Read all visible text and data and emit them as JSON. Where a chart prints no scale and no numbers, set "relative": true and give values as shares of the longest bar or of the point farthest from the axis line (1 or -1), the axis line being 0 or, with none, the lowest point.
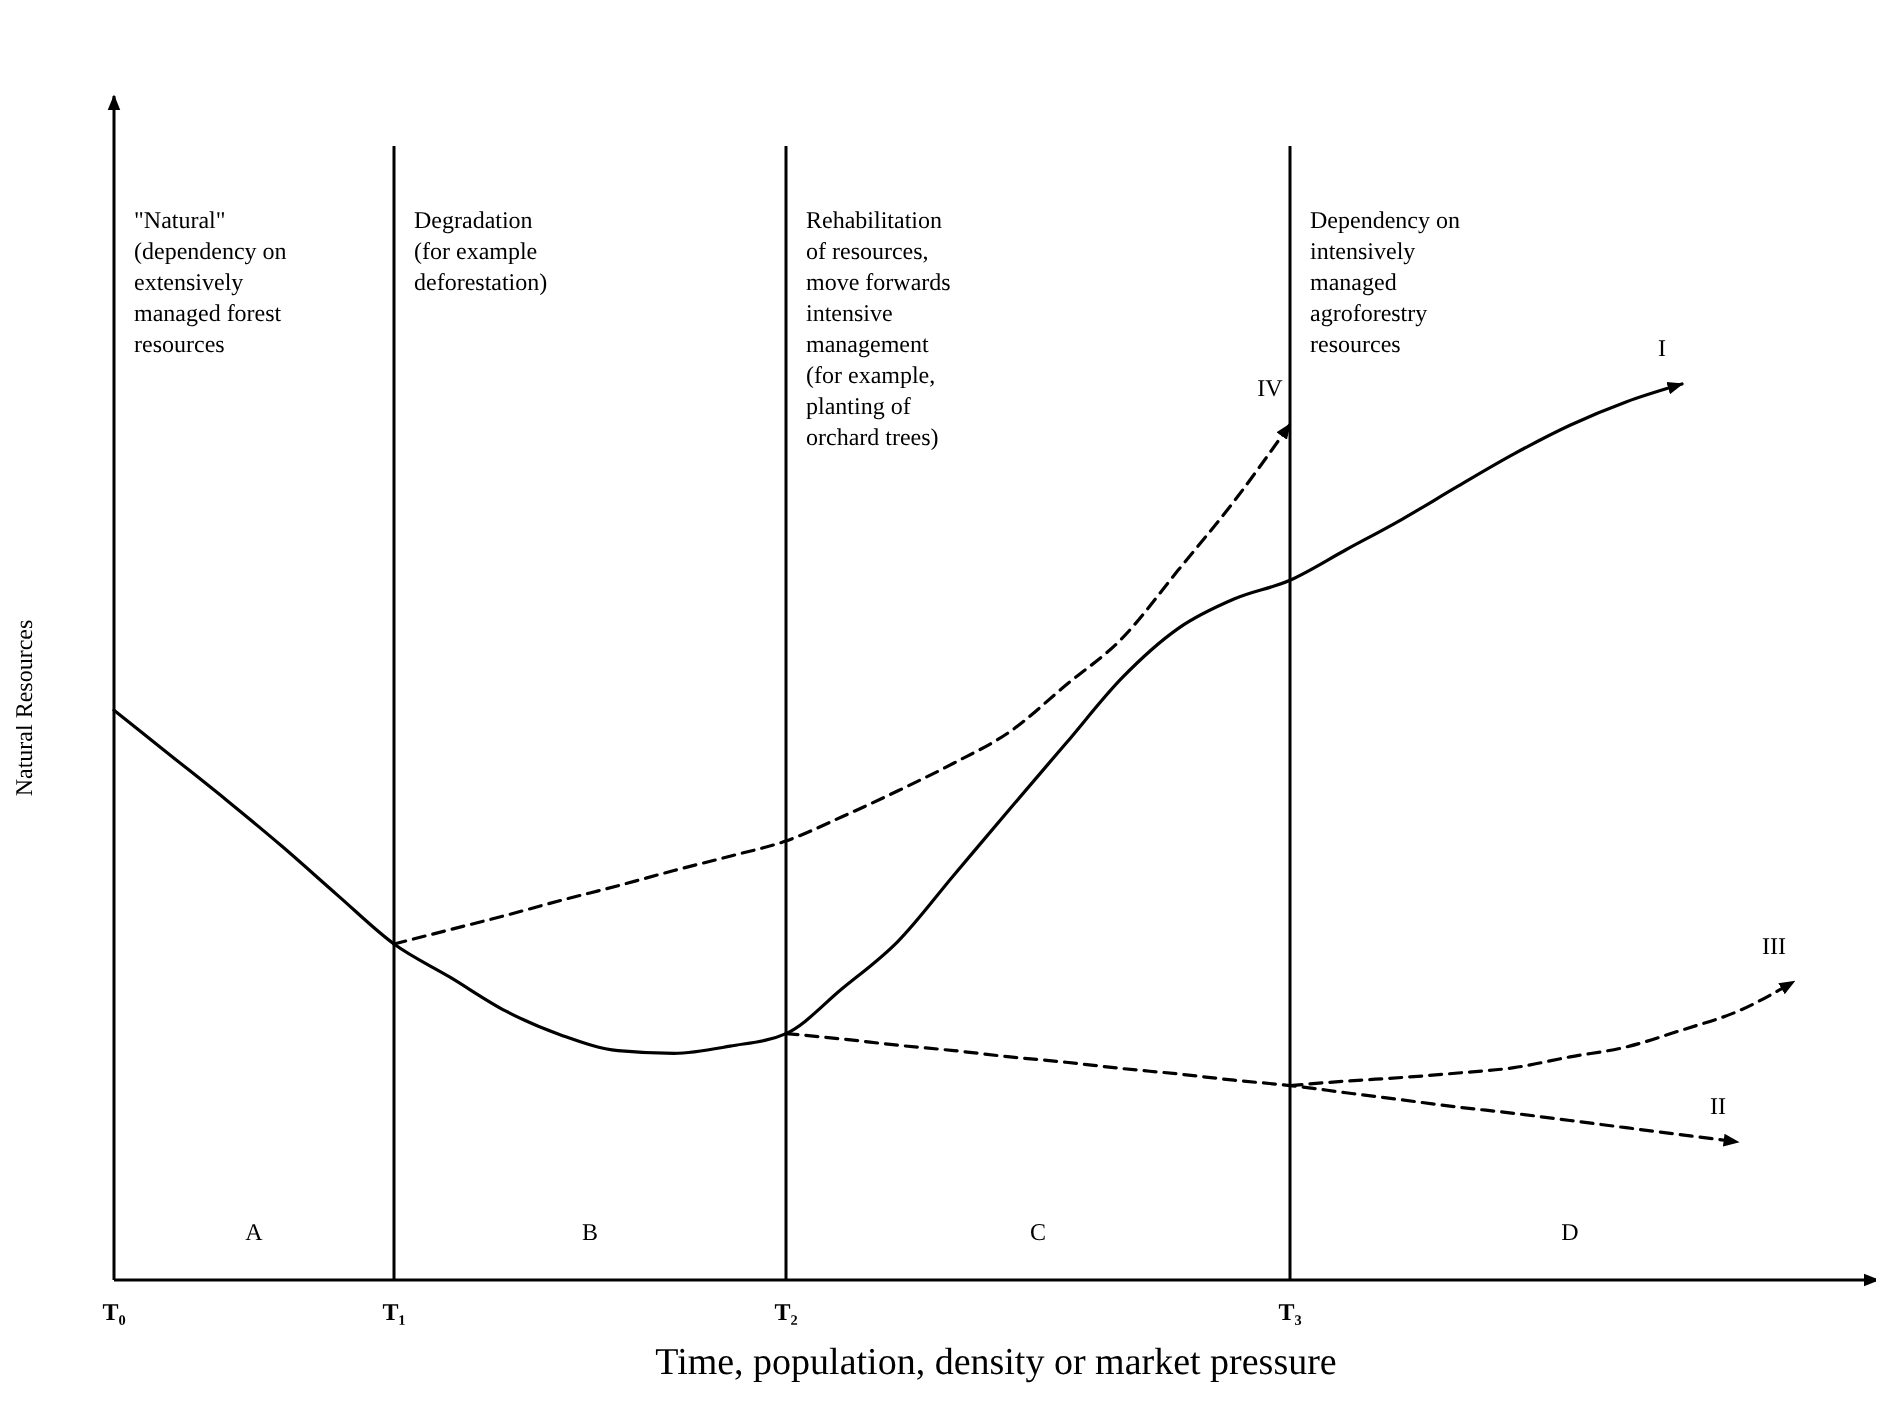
{
  "chart_data": {
    "type": "line",
    "relative": true,
    "xlabel": "Time, population, density or market pressure",
    "ylabel": "Natural Resources",
    "categories": [
      "T₀",
      null,
      null,
      null,
      null,
      "T₁",
      null,
      null,
      null,
      null,
      null,
      null,
      "T₂",
      null,
      null,
      null,
      null,
      null,
      null,
      null,
      null,
      "T₃",
      null,
      null,
      null,
      null,
      null,
      null,
      null,
      null,
      null,
      null
    ],
    "series": [
      {
        "name": "I",
        "color": "#000000",
        "line_style": "solid",
        "values": [
          0.636,
          0.586,
          0.536,
          0.484,
          0.429,
          0.375,
          0.338,
          0.3,
          0.273,
          0.256,
          0.253,
          0.261,
          0.275,
          0.325,
          0.378,
          0.452,
          0.526,
          0.599,
          0.672,
          0.727,
          0.76,
          0.781,
          0.815,
          0.849,
          0.886,
          0.922,
          0.954,
          0.98,
          1,
          null,
          null,
          null
        ]
      },
      {
        "name": "II",
        "color": "#000000",
        "line_style": "dashed",
        "values": [
          null,
          null,
          null,
          null,
          null,
          null,
          null,
          null,
          null,
          null,
          null,
          null,
          0.275,
          0.269,
          0.262,
          0.256,
          0.249,
          0.243,
          0.236,
          0.23,
          0.223,
          0.217,
          0.209,
          0.201,
          0.193,
          0.186,
          0.178,
          0.17,
          0.162,
          0.154,
          null,
          null
        ]
      },
      {
        "name": "III",
        "color": "#000000",
        "line_style": "dashed",
        "values": [
          null,
          null,
          null,
          null,
          null,
          null,
          null,
          null,
          null,
          null,
          null,
          null,
          null,
          null,
          null,
          null,
          null,
          null,
          null,
          null,
          null,
          0.217,
          0.222,
          0.226,
          0.231,
          0.237,
          0.249,
          0.26,
          0.279,
          0.3,
          0.333,
          null
        ]
      },
      {
        "name": "IV",
        "color": "#000000",
        "line_style": "dashed",
        "values": [
          null,
          null,
          null,
          null,
          null,
          0.375,
          0.391,
          0.407,
          0.424,
          0.44,
          0.457,
          0.473,
          0.49,
          0.517,
          0.546,
          0.577,
          0.612,
          0.664,
          0.716,
          0.792,
          0.869,
          0.955,
          null,
          null,
          null,
          null,
          null,
          null,
          null,
          null,
          null,
          null
        ]
      }
    ],
    "ref_lines": [
      {
        "axis": "x",
        "value": "T₁"
      },
      {
        "axis": "x",
        "value": "T₂"
      },
      {
        "axis": "x",
        "value": "T₃"
      }
    ],
    "annotations": [
      "\"Natural\"\n(dependency on\nextensively\nmanaged forest\nresources",
      "Degradation\n(for example\ndeforestation)",
      "Rehabilitation\nof resources,\nmove forwards\nintensive\nmanagement\n(for example,\nplanting of\norchard trees)",
      "Dependency on\nintensively\nmanaged\nagroforestry\nresources",
      "A",
      "B",
      "C",
      "D"
    ],
    "marker": "none"
  }
}
